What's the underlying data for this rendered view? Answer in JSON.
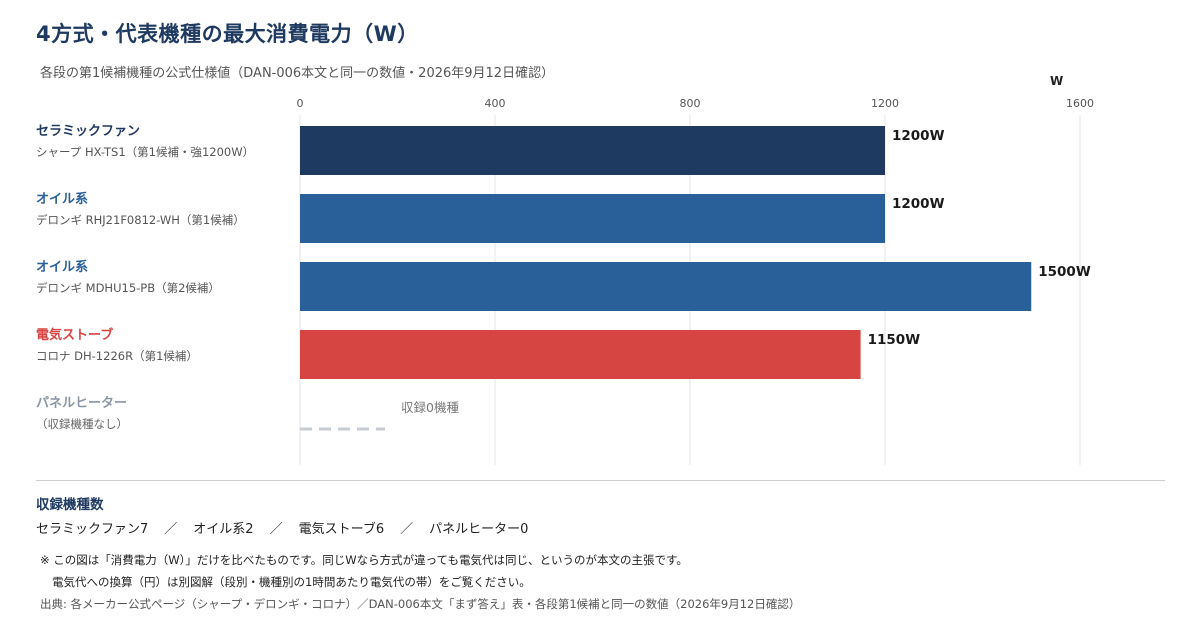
{
  "header": {
    "title": "4方式・代表機種の最大消費電力（W）",
    "subtitle": "各段の第1候補機種の公式仕様値（DAN-006本文と同一の数値・2026年9月12日確認）"
  },
  "chart_data": {
    "type": "bar",
    "orientation": "horizontal",
    "unit": "W",
    "xlim": [
      0,
      1600
    ],
    "ticks": [
      0,
      400,
      800,
      1200,
      1600
    ],
    "tick_labels": [
      "0",
      "400",
      "800",
      "1200",
      "1600"
    ],
    "grid": true,
    "categories": [
      {
        "name": "セラミックファン",
        "model": "シャープ HX-TS1（第1候補・強1200W）",
        "value": 1200,
        "value_label": "1200W",
        "color": "#1f3a60"
      },
      {
        "name": "オイル系",
        "model": "デロンギ RHJ21F0812-WH（第1候補）",
        "value": 1200,
        "value_label": "1200W",
        "color": "#2a6099"
      },
      {
        "name": "オイル系",
        "model": "デロンギ MDHU15-PB（第2候補）",
        "value": 1500,
        "value_label": "1500W",
        "color": "#2a6099"
      },
      {
        "name": "電気ストーブ",
        "model": "コロナ DH-1226R（第1候補）",
        "value": 1150,
        "value_label": "1150W",
        "color": "#d64541"
      },
      {
        "name": "パネルヒーター",
        "model": "（収録機種なし）",
        "value": null,
        "value_label": "収録0機種",
        "color": "#8a96a3"
      }
    ]
  },
  "counts": {
    "title": "収録機種数",
    "items": [
      "セラミックファン7",
      "オイル系2",
      "電気ストーブ6",
      "パネルヒーター0"
    ],
    "separator": "／"
  },
  "notes": {
    "line1": "※ この図は「消費電力（W）」だけを比べたものです。同じWなら方式が違っても電気代は同じ、というのが本文の主張です。",
    "line2": "電気代への換算（円）は別図解（段別・機種別の1時間あたり電気代の帯）をご覧ください。"
  },
  "source": "出典: 各メーカー公式ページ（シャープ・デロンギ・コロナ）／DAN-006本文「まず答え」表・各段第1候補と同一の数値（2026年9月12日確認）"
}
